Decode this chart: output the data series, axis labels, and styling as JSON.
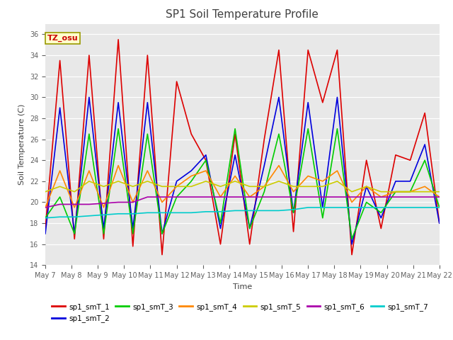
{
  "title": "SP1 Soil Temperature Profile",
  "xlabel": "Time",
  "ylabel": "Soil Temperature (C)",
  "annotation": "TZ_osu",
  "ylim": [
    14,
    37
  ],
  "yticks": [
    14,
    16,
    18,
    20,
    22,
    24,
    26,
    28,
    30,
    32,
    34,
    36
  ],
  "fig_bg": "#ffffff",
  "plot_bg": "#e8e8e8",
  "series_colors": {
    "sp1_smT_1": "#dd0000",
    "sp1_smT_2": "#0000dd",
    "sp1_smT_3": "#00cc00",
    "sp1_smT_4": "#ff8800",
    "sp1_smT_5": "#cccc00",
    "sp1_smT_6": "#aa00aa",
    "sp1_smT_7": "#00cccc"
  },
  "xtick_labels": [
    "May 7",
    "May 8",
    "May 9",
    "May 10",
    "May 11",
    "May 12",
    "May 13",
    "May 14",
    "May 15",
    "May 16",
    "May 17",
    "May 18",
    "May 19",
    "May 20",
    "May 21",
    "May 22"
  ],
  "sp1_smT_1": [
    17.5,
    33.5,
    16.5,
    34.0,
    16.5,
    35.5,
    15.8,
    34.0,
    15.0,
    31.5,
    26.5,
    24.0,
    16.0,
    26.5,
    16.0,
    26.0,
    34.5,
    17.2,
    34.5,
    29.5,
    34.5,
    15.0,
    24.0,
    17.5,
    24.5,
    24.0,
    28.5,
    18.0
  ],
  "sp1_smT_2": [
    17.0,
    29.0,
    17.0,
    30.0,
    17.5,
    29.5,
    17.5,
    29.5,
    17.0,
    22.0,
    23.0,
    24.5,
    17.5,
    24.5,
    17.5,
    23.5,
    30.0,
    19.0,
    29.5,
    19.5,
    30.0,
    16.0,
    21.5,
    18.5,
    22.0,
    22.0,
    25.5,
    18.0
  ],
  "sp1_smT_3": [
    18.5,
    20.5,
    17.0,
    26.5,
    17.0,
    27.0,
    17.0,
    26.5,
    17.0,
    20.5,
    22.0,
    24.0,
    18.0,
    27.0,
    17.5,
    21.0,
    26.5,
    19.0,
    27.0,
    18.5,
    27.0,
    16.5,
    20.0,
    19.0,
    21.0,
    21.0,
    24.0,
    19.5
  ],
  "sp1_smT_4": [
    19.5,
    23.0,
    19.5,
    23.0,
    19.5,
    23.5,
    20.0,
    23.0,
    20.0,
    21.5,
    22.5,
    23.0,
    20.5,
    22.5,
    20.5,
    21.5,
    23.5,
    21.0,
    22.5,
    22.0,
    23.0,
    20.0,
    21.5,
    20.5,
    21.0,
    21.0,
    21.5,
    20.5
  ],
  "sp1_smT_5": [
    21.0,
    21.5,
    21.0,
    22.0,
    21.5,
    22.0,
    21.5,
    22.0,
    21.5,
    21.5,
    21.5,
    22.0,
    21.5,
    22.0,
    21.5,
    21.5,
    22.0,
    21.5,
    21.5,
    21.5,
    22.0,
    21.0,
    21.5,
    21.0,
    21.0,
    21.0,
    21.0,
    21.0
  ],
  "sp1_smT_6": [
    19.5,
    19.8,
    19.8,
    19.8,
    19.9,
    20.0,
    20.0,
    20.5,
    20.5,
    20.5,
    20.5,
    20.5,
    20.5,
    20.5,
    20.5,
    20.5,
    20.5,
    20.5,
    20.5,
    20.5,
    20.5,
    20.5,
    20.5,
    20.5,
    20.5,
    20.5,
    20.5,
    20.5
  ],
  "sp1_smT_7": [
    18.5,
    18.6,
    18.6,
    18.7,
    18.8,
    18.9,
    18.9,
    19.0,
    19.0,
    19.0,
    19.0,
    19.1,
    19.1,
    19.2,
    19.2,
    19.2,
    19.2,
    19.3,
    19.5,
    19.5,
    19.5,
    19.5,
    19.5,
    19.5,
    19.5,
    19.5,
    19.5,
    19.5
  ],
  "linewidth": 1.2
}
